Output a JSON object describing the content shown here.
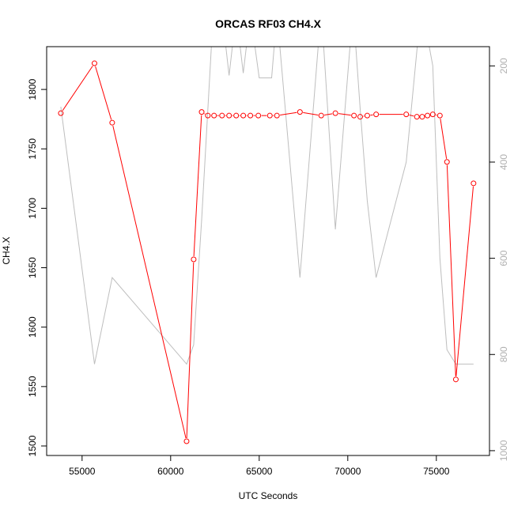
{
  "chart_data": {
    "type": "line",
    "title": "ORCAS RF03 CH4.X",
    "xlabel": "UTC Seconds",
    "ylabel": "CH4.X",
    "xlim": [
      53000,
      78000
    ],
    "ylim": [
      1492,
      1836
    ],
    "y2lim": [
      1010,
      160
    ],
    "x_ticks": [
      55000,
      60000,
      65000,
      70000,
      75000
    ],
    "y_ticks": [
      1500,
      1550,
      1600,
      1650,
      1700,
      1750,
      1800
    ],
    "y2_ticks": [
      200,
      400,
      600,
      800,
      1000
    ],
    "grid": false,
    "series": [
      {
        "color": "#ff0000",
        "marker": "open-circle",
        "axis": "left",
        "x": [
          53800,
          55700,
          56700,
          60900,
          61300,
          61750,
          62100,
          62450,
          62900,
          63300,
          63700,
          64100,
          64500,
          64950,
          65600,
          66000,
          67300,
          68500,
          69300,
          70350,
          70700,
          71100,
          71600,
          73300,
          73900,
          74200,
          74500,
          74800,
          75200,
          75600,
          76100,
          77100
        ],
        "y": [
          1780,
          1822,
          1772,
          1504,
          1657,
          1781,
          1778,
          1778,
          1778,
          1778,
          1778,
          1778,
          1778,
          1778,
          1778,
          1778,
          1781,
          1778,
          1780,
          1778,
          1777,
          1778,
          1779,
          1779,
          1777,
          1777,
          1778,
          1779,
          1778,
          1739,
          1556,
          1721
        ]
      },
      {
        "color": "#bebebe",
        "axis": "right",
        "x": [
          53800,
          55700,
          56700,
          60900,
          61300,
          61750,
          62300,
          62900,
          63300,
          63700,
          64100,
          64500,
          65000,
          65700,
          66000,
          67300,
          68500,
          69300,
          70300,
          70700,
          71100,
          71600,
          73300,
          74000,
          74200,
          74800,
          75200,
          75600,
          76100,
          77100
        ],
        "y": [
          285,
          820,
          640,
          820,
          780,
          520,
          160,
          90,
          220,
          90,
          215,
          90,
          225,
          225,
          90,
          640,
          80,
          540,
          80,
          290,
          480,
          640,
          400,
          130,
          80,
          200,
          600,
          790,
          820,
          820
        ]
      }
    ]
  }
}
